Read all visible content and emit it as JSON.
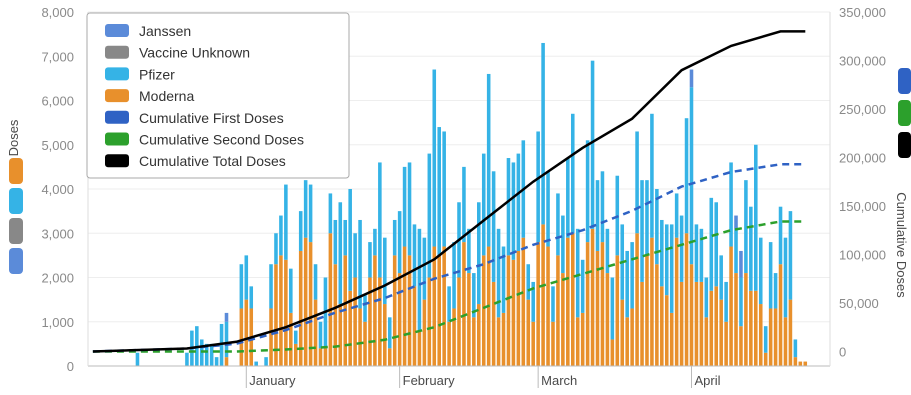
{
  "colors": {
    "janssen": "#5b8bd9",
    "unknown": "#888888",
    "pfizer": "#35b3e6",
    "moderna": "#e8902c",
    "first": "#2f62c4",
    "second": "#2ca02c",
    "total": "#000000",
    "right_axis": "#3d6f96",
    "grid": "#eeeeee"
  },
  "chart_data": {
    "type": "bar",
    "xlabel": "",
    "ylabel": "Doses",
    "y2label": "Cumulative Doses",
    "ylim": [
      0,
      8000
    ],
    "y2lim": [
      -15000,
      350000
    ],
    "yticks": [
      "0",
      "1,000",
      "2,000",
      "3,000",
      "4,000",
      "5,000",
      "6,000",
      "7,000",
      "8,000"
    ],
    "y2ticks": [
      "0",
      "50,000",
      "100,000",
      "150,000",
      "200,000",
      "250,000",
      "300,000",
      "350,000"
    ],
    "x_tick_labels": [
      {
        "label": "January",
        "day": 32
      },
      {
        "label": "February",
        "day": 63
      },
      {
        "label": "March",
        "day": 91
      },
      {
        "label": "April",
        "day": 122
      }
    ],
    "legend": [
      "Janssen",
      "Vaccine Unknown",
      "Pfizer",
      "Moderna",
      "Cumulative First Doses",
      "Cumulative Second Doses",
      "Cumulative Total Doses"
    ],
    "series": [
      {
        "name": "Janssen",
        "kind": "bar"
      },
      {
        "name": "Vaccine Unknown",
        "kind": "bar"
      },
      {
        "name": "Pfizer",
        "kind": "bar"
      },
      {
        "name": "Moderna",
        "kind": "bar"
      },
      {
        "name": "Cumulative First Doses",
        "kind": "line"
      },
      {
        "name": "Cumulative Second Doses",
        "kind": "line"
      },
      {
        "name": "Cumulative Total Doses",
        "kind": "line"
      }
    ],
    "bars": [
      [
        10,
        0,
        300,
        0
      ],
      [
        20,
        0,
        300,
        0
      ],
      [
        21,
        0,
        800,
        0
      ],
      [
        22,
        0,
        900,
        0
      ],
      [
        23,
        0,
        600,
        0
      ],
      [
        24,
        0,
        500,
        0
      ],
      [
        25,
        0,
        500,
        0
      ],
      [
        26,
        0,
        200,
        0
      ],
      [
        27,
        0,
        950,
        0
      ],
      [
        28,
        200,
        800,
        200
      ],
      [
        31,
        1300,
        1000,
        0
      ],
      [
        32,
        1500,
        1000,
        0
      ],
      [
        33,
        1300,
        500,
        0
      ],
      [
        34,
        0,
        100,
        0
      ],
      [
        36,
        0,
        200,
        0
      ],
      [
        37,
        1300,
        1000,
        0
      ],
      [
        38,
        2300,
        700,
        0
      ],
      [
        39,
        2500,
        900,
        0
      ],
      [
        40,
        2400,
        1700,
        0
      ],
      [
        41,
        1200,
        1000,
        0
      ],
      [
        42,
        500,
        300,
        0
      ],
      [
        43,
        2600,
        900,
        0
      ],
      [
        44,
        2900,
        1300,
        0
      ],
      [
        45,
        2800,
        1300,
        0
      ],
      [
        46,
        1500,
        800,
        0
      ],
      [
        47,
        400,
        600,
        0
      ],
      [
        48,
        400,
        1600,
        0
      ],
      [
        49,
        3000,
        900,
        0
      ],
      [
        50,
        2300,
        1000,
        0
      ],
      [
        51,
        1400,
        2300,
        0
      ],
      [
        52,
        2500,
        800,
        0
      ],
      [
        53,
        1700,
        2300,
        0
      ],
      [
        54,
        2000,
        1000,
        0
      ],
      [
        55,
        1300,
        2000,
        0
      ],
      [
        56,
        1000,
        600,
        0
      ],
      [
        57,
        2000,
        800,
        0
      ],
      [
        58,
        2500,
        600,
        0
      ],
      [
        59,
        2000,
        2600,
        0
      ],
      [
        60,
        1400,
        1500,
        0
      ],
      [
        61,
        400,
        700,
        0
      ],
      [
        62,
        2500,
        800,
        0
      ],
      [
        63,
        2100,
        1400,
        0
      ],
      [
        64,
        2700,
        1800,
        0
      ],
      [
        65,
        2500,
        2100,
        0
      ],
      [
        66,
        1800,
        1400,
        0
      ],
      [
        67,
        800,
        2300,
        0
      ],
      [
        68,
        1500,
        1400,
        0
      ],
      [
        69,
        2000,
        2800,
        0
      ],
      [
        70,
        2700,
        4000,
        0
      ],
      [
        71,
        2500,
        2900,
        0
      ],
      [
        72,
        2700,
        2600,
        0
      ],
      [
        73,
        1000,
        800,
        0
      ],
      [
        74,
        1300,
        1500,
        0
      ],
      [
        75,
        2000,
        1700,
        0
      ],
      [
        76,
        2800,
        1700,
        0
      ],
      [
        77,
        2100,
        1000,
        0
      ],
      [
        78,
        1100,
        1000,
        0
      ],
      [
        79,
        1400,
        2300,
        0
      ],
      [
        80,
        2500,
        2300,
        0
      ],
      [
        81,
        2700,
        3900,
        0
      ],
      [
        82,
        1900,
        2500,
        0
      ],
      [
        83,
        1100,
        2000,
        0
      ],
      [
        84,
        1200,
        1500,
        0
      ],
      [
        85,
        2500,
        2200,
        0
      ],
      [
        86,
        2400,
        2200,
        0
      ],
      [
        87,
        2600,
        2200,
        0
      ],
      [
        88,
        2900,
        2200,
        0
      ],
      [
        89,
        1500,
        800,
        0
      ],
      [
        90,
        1000,
        900,
        0
      ],
      [
        91,
        2800,
        2500,
        0
      ],
      [
        92,
        3200,
        4100,
        0
      ],
      [
        93,
        2700,
        1700,
        0
      ],
      [
        94,
        1000,
        800,
        0
      ],
      [
        95,
        2500,
        1400,
        0
      ],
      [
        96,
        2100,
        1300,
        0
      ],
      [
        97,
        2900,
        1800,
        0
      ],
      [
        98,
        3000,
        2700,
        0
      ],
      [
        99,
        1100,
        2000,
        0
      ],
      [
        100,
        1200,
        1200,
        0
      ],
      [
        101,
        2800,
        2300,
        0
      ],
      [
        102,
        3100,
        3800,
        0
      ],
      [
        103,
        2600,
        1600,
        0
      ],
      [
        104,
        2800,
        1600,
        0
      ],
      [
        105,
        2100,
        1000,
        0
      ],
      [
        106,
        600,
        1400,
        0
      ],
      [
        107,
        2500,
        1800,
        0
      ],
      [
        108,
        1500,
        1700,
        0
      ],
      [
        109,
        1100,
        1500,
        0
      ],
      [
        110,
        1300,
        1500,
        0
      ],
      [
        111,
        3000,
        2300,
        0
      ],
      [
        112,
        1900,
        2300,
        0
      ],
      [
        113,
        2500,
        1700,
        0
      ],
      [
        114,
        2900,
        2800,
        0
      ],
      [
        115,
        2300,
        1700,
        0
      ],
      [
        116,
        1800,
        1500,
        0
      ],
      [
        117,
        1600,
        1600,
        0
      ],
      [
        118,
        1200,
        2000,
        0
      ],
      [
        119,
        2900,
        1000,
        0
      ],
      [
        120,
        1900,
        1500,
        0
      ],
      [
        121,
        3000,
        2600,
        0
      ],
      [
        122,
        2300,
        4000,
        400
      ],
      [
        123,
        1900,
        1300,
        0
      ],
      [
        124,
        1900,
        1200,
        0
      ],
      [
        125,
        1100,
        900,
        0
      ],
      [
        126,
        1700,
        2100,
        0
      ],
      [
        127,
        1800,
        1900,
        0
      ],
      [
        128,
        1500,
        1000,
        0
      ],
      [
        129,
        1000,
        900,
        0
      ],
      [
        130,
        2700,
        1900,
        0
      ],
      [
        131,
        2100,
        1000,
        300
      ],
      [
        132,
        900,
        1100,
        600
      ],
      [
        133,
        2100,
        2100,
        0
      ],
      [
        134,
        1700,
        1900,
        0
      ],
      [
        135,
        1700,
        3300,
        0
      ],
      [
        136,
        1400,
        1500,
        0
      ],
      [
        137,
        300,
        600,
        0
      ],
      [
        138,
        1300,
        1500,
        0
      ],
      [
        139,
        1300,
        800,
        0
      ],
      [
        140,
        2300,
        1300,
        0
      ],
      [
        141,
        1100,
        1800,
        0
      ],
      [
        142,
        1500,
        2000,
        0
      ],
      [
        143,
        200,
        400,
        0
      ],
      [
        144,
        100,
        0,
        0
      ],
      [
        145,
        100,
        0,
        0
      ]
    ],
    "cumulative": {
      "day": [
        1,
        20,
        30,
        40,
        50,
        60,
        70,
        80,
        90,
        100,
        110,
        120,
        130,
        140,
        145
      ],
      "first": [
        0,
        3000,
        8000,
        22000,
        40000,
        55000,
        75000,
        90000,
        110000,
        125000,
        145000,
        170000,
        185000,
        193000,
        193000
      ],
      "second": [
        0,
        0,
        0,
        2000,
        5000,
        12000,
        25000,
        45000,
        65000,
        80000,
        95000,
        110000,
        125000,
        134000,
        134000
      ],
      "total": [
        0,
        3000,
        10000,
        25000,
        45000,
        68000,
        95000,
        135000,
        175000,
        210000,
        240000,
        290000,
        315000,
        330000,
        330000
      ]
    },
    "grid": true,
    "legend_position": "top-left"
  }
}
